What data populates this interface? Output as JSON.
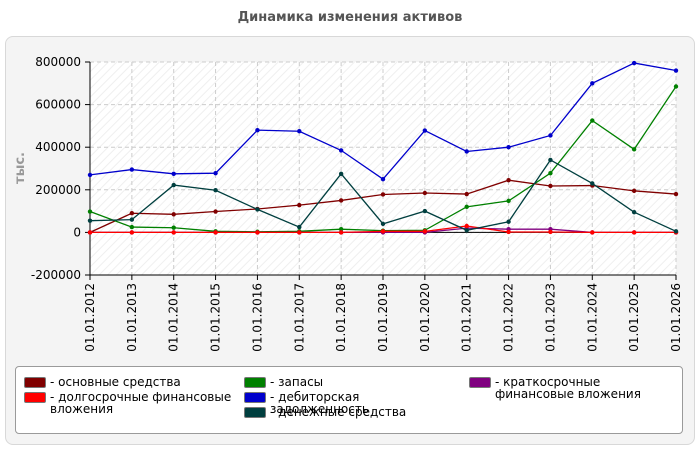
{
  "chart_data": {
    "type": "line",
    "title": "Динамика изменения активов",
    "ylabel": "тыс.",
    "xlabel": "",
    "ylim": [
      -200000,
      800000
    ],
    "yticks": [
      "-200000",
      "0",
      "200000",
      "400000",
      "600000",
      "800000"
    ],
    "x": [
      "01.01.2012",
      "01.01.2013",
      "01.01.2014",
      "01.01.2015",
      "01.01.2016",
      "01.01.2017",
      "01.01.2018",
      "01.01.2019",
      "01.01.2020",
      "01.01.2021",
      "01.01.2022",
      "01.01.2023",
      "01.01.2024",
      "01.01.2025",
      "01.01.2026"
    ],
    "grid": true,
    "legend_position": "bottom",
    "series": [
      {
        "name": "основные средства",
        "color": "#800000",
        "values": [
          0,
          90000,
          85000,
          98000,
          110000,
          128000,
          150000,
          178000,
          185000,
          180000,
          245000,
          218000,
          220000,
          195000,
          180000
        ]
      },
      {
        "name": "запасы",
        "color": "#008000",
        "values": [
          98000,
          25000,
          22000,
          5000,
          3000,
          5000,
          15000,
          8000,
          10000,
          120000,
          148000,
          278000,
          525000,
          390000,
          685000
        ]
      },
      {
        "name": "краткосрочные финансовые вложения",
        "color": "#800080",
        "values": [
          0,
          0,
          0,
          0,
          0,
          0,
          0,
          0,
          0,
          20000,
          15000,
          15000,
          0,
          0,
          0
        ]
      },
      {
        "name": "долгосрочные финансовые вложения",
        "color": "#ff0000",
        "values": [
          0,
          0,
          0,
          0,
          0,
          0,
          0,
          5000,
          5000,
          30000,
          2000,
          2000,
          0,
          0,
          0
        ]
      },
      {
        "name": "дебиторская задолженность",
        "color": "#0000cc",
        "values": [
          270000,
          295000,
          275000,
          278000,
          480000,
          475000,
          385000,
          250000,
          478000,
          380000,
          400000,
          455000,
          700000,
          795000,
          760000
        ]
      },
      {
        "name": "денежные средства",
        "color": "#003f3f",
        "values": [
          55000,
          60000,
          222000,
          198000,
          108000,
          25000,
          275000,
          40000,
          100000,
          10000,
          50000,
          340000,
          230000,
          95000,
          5000
        ]
      }
    ]
  },
  "legend_layout": [
    {
      "series": 0,
      "col": 0,
      "row": 0
    },
    {
      "series": 1,
      "col": 1,
      "row": 0
    },
    {
      "series": 2,
      "col": 2,
      "row": 0
    },
    {
      "series": 3,
      "col": 0,
      "row": 1
    },
    {
      "series": 4,
      "col": 1,
      "row": 1
    },
    {
      "series": 5,
      "col": 1,
      "row": 2
    }
  ]
}
